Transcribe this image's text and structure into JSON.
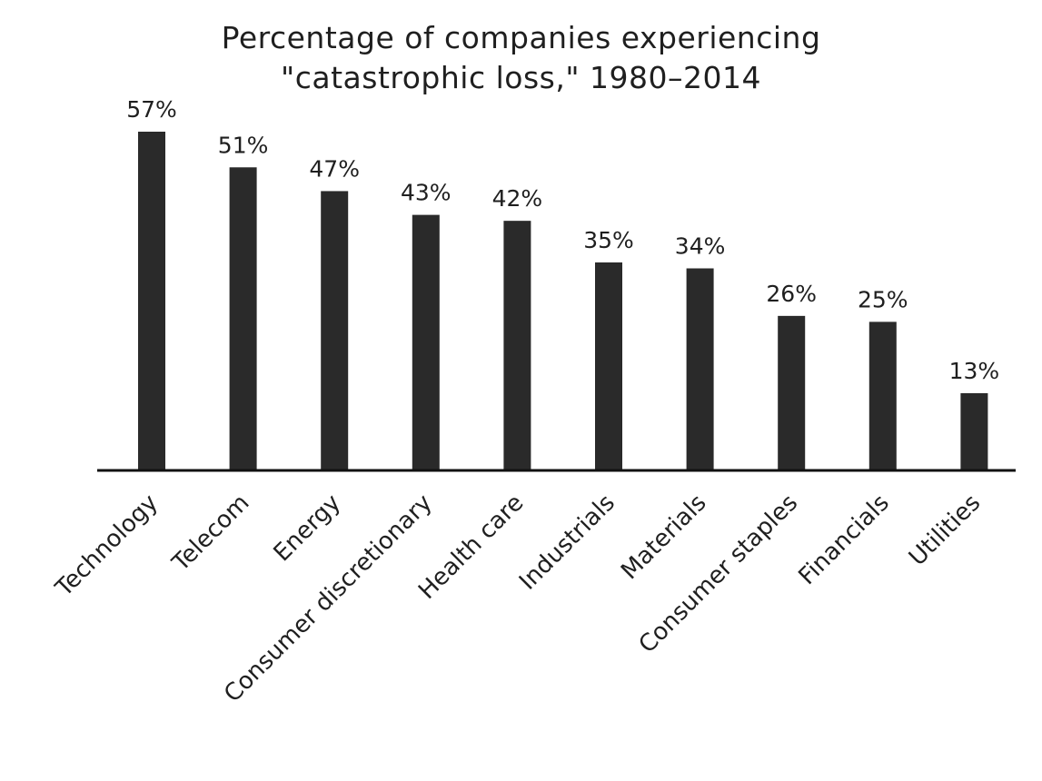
{
  "chart_data": {
    "type": "bar",
    "title": "Percentage of companies experiencing \"catastrophic loss,\" 1980–2014",
    "title_lines": [
      "Percentage of companies experiencing",
      "\"catastrophic loss,\" 1980–2014"
    ],
    "categories": [
      "Technology",
      "Telecom",
      "Energy",
      "Consumer discretionary",
      "Health care",
      "Industrials",
      "Materials",
      "Consumer staples",
      "Financials",
      "Utilities"
    ],
    "values": [
      57,
      51,
      47,
      43,
      42,
      35,
      34,
      26,
      25,
      13
    ],
    "value_labels": [
      "57%",
      "51%",
      "47%",
      "43%",
      "42%",
      "35%",
      "34%",
      "26%",
      "25%",
      "13%"
    ],
    "unit": "%",
    "xlabel": "",
    "ylabel": "",
    "ylim": [
      0,
      57
    ],
    "grid": false,
    "legend": "none",
    "colors": {
      "bar": "#2a2a2a",
      "axis": "#111111",
      "text": "#1f1f1f",
      "background": "#ffffff"
    }
  }
}
